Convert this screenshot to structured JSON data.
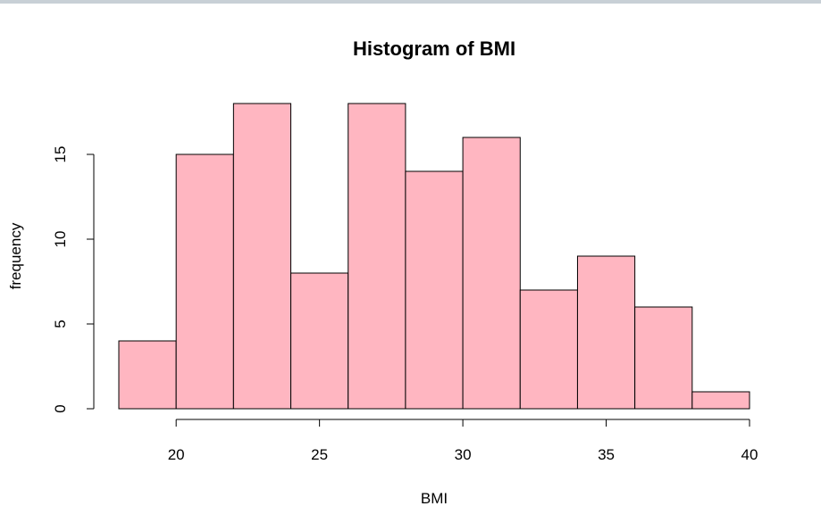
{
  "chart_data": {
    "type": "bar",
    "title": "Histogram of BMI",
    "xlabel": "BMI",
    "ylabel": "frequency",
    "bin_edges": [
      18,
      20,
      22,
      24,
      26,
      28,
      30,
      32,
      34,
      36,
      38,
      40
    ],
    "values": [
      4,
      15,
      18,
      8,
      18,
      14,
      16,
      7,
      9,
      6,
      1
    ],
    "xlim": [
      18,
      40
    ],
    "ylim": [
      0,
      18
    ],
    "x_ticks": [
      20,
      25,
      30,
      35,
      40
    ],
    "y_ticks": [
      0,
      5,
      10,
      15
    ],
    "bar_fill": "#ffb6c1",
    "bar_stroke": "#000000",
    "grid": false,
    "legend": "none"
  }
}
